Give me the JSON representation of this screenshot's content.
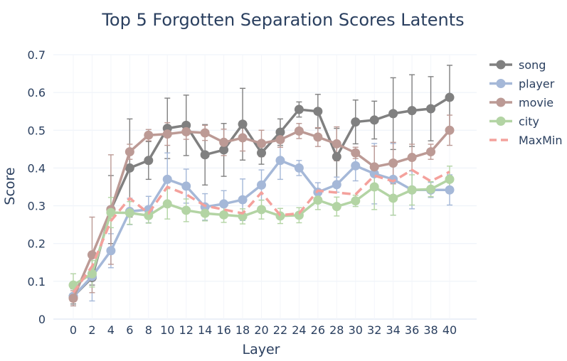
{
  "chart_data": {
    "type": "line",
    "title": "Top 5 Forgotten Separation Scores Latents",
    "xlabel": "Layer",
    "ylabel": "Score",
    "x": [
      0,
      2,
      4,
      6,
      8,
      10,
      12,
      14,
      16,
      18,
      20,
      22,
      24,
      26,
      28,
      30,
      32,
      34,
      36,
      38,
      40
    ],
    "xticks": [
      "0",
      "2",
      "4",
      "6",
      "8",
      "10",
      "12",
      "14",
      "16",
      "18",
      "20",
      "22",
      "24",
      "26",
      "28",
      "30",
      "32",
      "34",
      "36",
      "38",
      "40"
    ],
    "ylim": [
      0,
      0.7
    ],
    "yticks": [
      "0",
      "0.1",
      "0.2",
      "0.3",
      "0.4",
      "0.5",
      "0.6",
      "0.7"
    ],
    "grid": true,
    "legend_position": "right",
    "series": [
      {
        "name": "song",
        "color": "#808080",
        "style": "solid-markers",
        "values": [
          0.06,
          0.11,
          0.29,
          0.4,
          0.42,
          0.505,
          0.513,
          0.435,
          0.448,
          0.516,
          0.44,
          0.495,
          0.555,
          0.55,
          0.43,
          0.522,
          0.527,
          0.544,
          0.552,
          0.557,
          0.587
        ],
        "error": [
          0.02,
          0.02,
          0.09,
          0.13,
          0.05,
          0.08,
          0.08,
          0.08,
          0.07,
          0.095,
          0.03,
          0.035,
          0.02,
          0.045,
          0.075,
          0.058,
          0.05,
          0.095,
          0.095,
          0.085,
          0.085
        ]
      },
      {
        "name": "player",
        "color": "#a5b8d8",
        "style": "solid-markers",
        "values": [
          0.06,
          0.113,
          0.181,
          0.285,
          0.29,
          0.37,
          0.352,
          0.297,
          0.305,
          0.316,
          0.355,
          0.42,
          0.4,
          0.336,
          0.356,
          0.406,
          0.385,
          0.37,
          0.342,
          0.342,
          0.342
        ],
        "error": [
          0.025,
          0.065,
          0.045,
          0.035,
          0.035,
          0.07,
          0.045,
          0.035,
          0.035,
          0.055,
          0.04,
          0.05,
          0.02,
          0.025,
          0.02,
          0.04,
          0.08,
          0.095,
          0.05,
          0.02,
          0.04
        ]
      },
      {
        "name": "movie",
        "color": "#bc9a95",
        "style": "solid-markers",
        "values": [
          0.055,
          0.17,
          0.29,
          0.443,
          0.487,
          0.49,
          0.496,
          0.493,
          0.468,
          0.48,
          0.465,
          0.475,
          0.498,
          0.482,
          0.464,
          0.44,
          0.403,
          0.413,
          0.428,
          0.443,
          0.5
        ],
        "error": [
          0.02,
          0.1,
          0.145,
          0.02,
          0.015,
          0.03,
          0.02,
          0.02,
          0.035,
          0.035,
          0.035,
          0.02,
          0.02,
          0.025,
          0.045,
          0.015,
          0.055,
          0.055,
          0.035,
          0.02,
          0.04
        ]
      },
      {
        "name": "city",
        "color": "#b3d4a4",
        "style": "solid-markers",
        "values": [
          0.09,
          0.12,
          0.282,
          0.281,
          0.274,
          0.305,
          0.288,
          0.28,
          0.276,
          0.272,
          0.29,
          0.273,
          0.275,
          0.315,
          0.298,
          0.313,
          0.35,
          0.32,
          0.342,
          0.344,
          0.37
        ],
        "error": [
          0.03,
          0.035,
          0.04,
          0.03,
          0.02,
          0.04,
          0.03,
          0.02,
          0.02,
          0.02,
          0.025,
          0.02,
          0.02,
          0.025,
          0.025,
          0.015,
          0.06,
          0.045,
          0.04,
          0.02,
          0.035
        ]
      },
      {
        "name": "MaxMin",
        "color": "#f4a19c",
        "style": "dashed",
        "values": [
          0.07,
          0.14,
          0.26,
          0.32,
          0.28,
          0.35,
          0.33,
          0.3,
          0.29,
          0.28,
          0.335,
          0.275,
          0.28,
          0.34,
          0.335,
          0.33,
          0.38,
          0.365,
          0.395,
          0.365,
          0.39
        ],
        "error": []
      }
    ]
  }
}
